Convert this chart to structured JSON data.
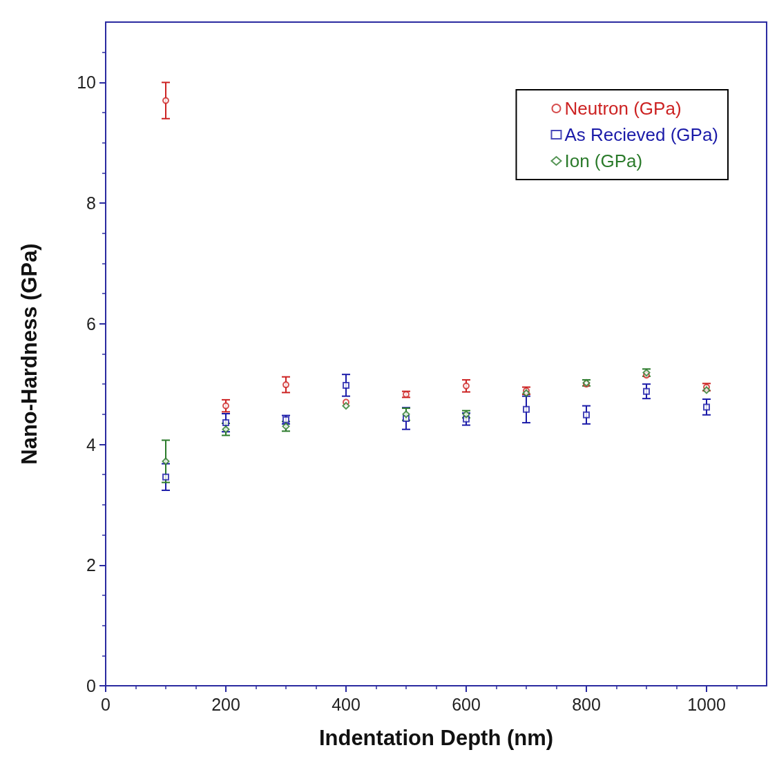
{
  "chart_data": {
    "type": "scatter",
    "xlabel": "Indentation Depth (nm)",
    "ylabel": "Nano-Hardness (GPa)",
    "xlim": [
      0,
      1100
    ],
    "xticks": [
      0,
      200,
      400,
      600,
      800,
      1000
    ],
    "ylim": [
      0,
      11
    ],
    "yticks": [
      0,
      2,
      4,
      6,
      8,
      10
    ],
    "x": [
      100,
      200,
      300,
      400,
      500,
      600,
      700,
      800,
      900,
      1000
    ],
    "grid": false,
    "legend": "top right",
    "series": [
      {
        "name": "Neutron (GPa)",
        "color": "#cc2222",
        "marker": "circle",
        "values": [
          9.7,
          4.64,
          4.99,
          4.7,
          4.83,
          4.97,
          4.89,
          5.0,
          5.15,
          4.95
        ],
        "errors": [
          0.3,
          0.1,
          0.13,
          null,
          0.05,
          0.1,
          0.06,
          null,
          null,
          0.06
        ]
      },
      {
        "name": "As Recieved (GPa)",
        "color": "#1a1aa8",
        "marker": "square",
        "values": [
          3.46,
          4.36,
          4.41,
          4.98,
          4.43,
          4.42,
          4.58,
          4.49,
          4.88,
          4.62
        ],
        "errors": [
          0.22,
          0.15,
          0.07,
          0.18,
          0.18,
          0.1,
          0.22,
          0.15,
          0.12,
          0.13
        ]
      },
      {
        "name": "Ion (GPa)",
        "color": "#2a7a2a",
        "marker": "diamond",
        "values": [
          3.72,
          4.25,
          4.3,
          4.64,
          4.5,
          4.5,
          4.85,
          5.02,
          5.19,
          4.9
        ],
        "errors": [
          0.35,
          0.1,
          0.08,
          null,
          0.1,
          0.06,
          null,
          0.05,
          0.06,
          null
        ]
      }
    ]
  }
}
